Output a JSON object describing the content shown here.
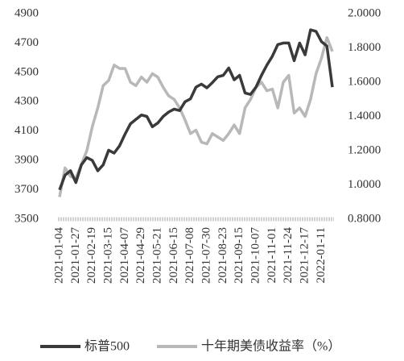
{
  "chart_data": {
    "type": "line",
    "categories": [
      "2021-01-04",
      null,
      null,
      "2021-01-27",
      null,
      null,
      "2021-02-19",
      null,
      null,
      "2021-03-15",
      null,
      null,
      "2021-04-07",
      null,
      null,
      "2021-04-29",
      null,
      null,
      "2021-05-21",
      null,
      null,
      "2021-06-15",
      null,
      null,
      "2021-07-08",
      null,
      null,
      "2021-07-30",
      null,
      null,
      "2021-08-23",
      null,
      null,
      "2021-09-15",
      null,
      null,
      "2021-10-07",
      null,
      null,
      "2021-11-01",
      null,
      null,
      "2021-11-24",
      null,
      null,
      "2021-12-17",
      null,
      null,
      "2022-01-11",
      null,
      null
    ],
    "series": [
      {
        "name": "标普500",
        "color": "#3a3a3a",
        "axis": "y",
        "values": [
          3700,
          3800,
          3830,
          3750,
          3870,
          3920,
          3900,
          3830,
          3870,
          3970,
          3950,
          4000,
          4080,
          4150,
          4180,
          4210,
          4200,
          4130,
          4155,
          4200,
          4230,
          4250,
          4240,
          4300,
          4320,
          4400,
          4420,
          4395,
          4430,
          4470,
          4480,
          4530,
          4450,
          4480,
          4360,
          4350,
          4400,
          4480,
          4550,
          4610,
          4690,
          4700,
          4700,
          4580,
          4700,
          4620,
          4790,
          4780,
          4710,
          4680,
          4400
        ]
      },
      {
        "name": "十年期美债收益率（%）",
        "color": "#b8b8b8",
        "axis": "y2",
        "values": [
          0.93,
          1.1,
          1.05,
          1.04,
          1.12,
          1.2,
          1.34,
          1.45,
          1.58,
          1.61,
          1.7,
          1.68,
          1.68,
          1.6,
          1.58,
          1.63,
          1.6,
          1.65,
          1.63,
          1.57,
          1.52,
          1.5,
          1.45,
          1.38,
          1.3,
          1.32,
          1.25,
          1.24,
          1.3,
          1.28,
          1.26,
          1.3,
          1.35,
          1.3,
          1.45,
          1.5,
          1.57,
          1.6,
          1.55,
          1.56,
          1.45,
          1.6,
          1.64,
          1.42,
          1.45,
          1.4,
          1.5,
          1.65,
          1.74,
          1.86,
          1.78
        ]
      }
    ],
    "ylim": [
      3500,
      4900
    ],
    "yticks": [
      3500,
      3700,
      3900,
      4100,
      4300,
      4500,
      4700,
      4900
    ],
    "y2lim": [
      0.8,
      2.0
    ],
    "y2ticks": [
      {
        "value": 0.8,
        "label": "0.8000"
      },
      {
        "value": 1.0,
        "label": "1.0000"
      },
      {
        "value": 1.2,
        "label": "1.2000"
      },
      {
        "value": 1.4,
        "label": "1.4000"
      },
      {
        "value": 1.6,
        "label": "1.6000"
      },
      {
        "value": 1.8,
        "label": "1.8000"
      },
      {
        "value": 2.0,
        "label": "2.0000"
      }
    ]
  }
}
